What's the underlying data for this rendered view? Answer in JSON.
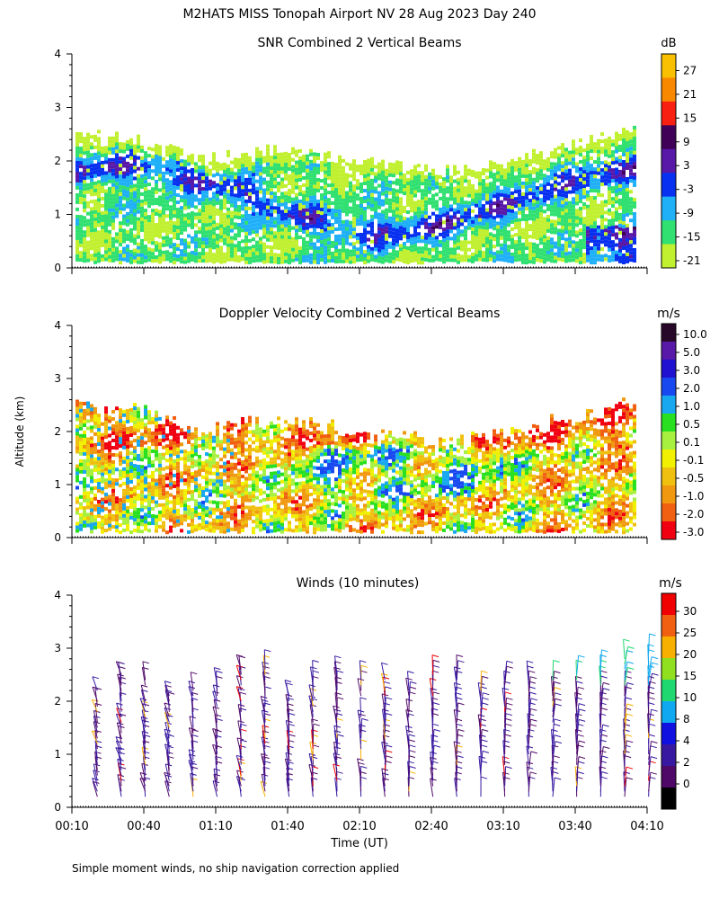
{
  "title": "M2HATS MISS Tonopah Airport NV  28 Aug 2023 Day 240",
  "ylabel": "Altitude (km)",
  "xlabel": "Time (UT)",
  "footnote": "Simple moment winds, no ship navigation correction applied",
  "chart_data": [
    {
      "type": "heatmap",
      "title": "SNR Combined 2 Vertical Beams",
      "xlim": [
        0.1667,
        4.1667
      ],
      "ylim": [
        0,
        4
      ],
      "x_ticks": [],
      "y_ticks": [
        "0",
        "1",
        "2",
        "3",
        "4"
      ],
      "colorbar": {
        "unit": "dB",
        "labels": [
          "27",
          "21",
          "15",
          "9",
          "3",
          "-3",
          "-9",
          "-15",
          "-21"
        ],
        "colors": [
          "#f8c000",
          "#f88800",
          "#f82010",
          "#400058",
          "#5818a8",
          "#0830f0",
          "#20b0f8",
          "#30e070",
          "#c0f030"
        ]
      },
      "description_values": {
        "echo_top_km": [
          2.5,
          2.4,
          2.0,
          2.2,
          2.1,
          1.9,
          1.8,
          2.0,
          2.3,
          2.6
        ],
        "dominant_snr_db": [
          -15,
          -9,
          -3
        ]
      }
    },
    {
      "type": "heatmap",
      "title": "Doppler Velocity Combined 2 Vertical Beams",
      "xlim": [
        0.1667,
        4.1667
      ],
      "ylim": [
        0,
        4
      ],
      "y_ticks": [
        "0",
        "1",
        "2",
        "3",
        "4"
      ],
      "colorbar": {
        "unit": "m/s",
        "labels": [
          "10.0",
          "5.0",
          "3.0",
          "2.0",
          "1.0",
          "0.5",
          "0.1",
          "-0.1",
          "-0.5",
          "-1.0",
          "-2.0",
          "-3.0"
        ],
        "colors": [
          "#280828",
          "#5818a8",
          "#2010d0",
          "#1848f0",
          "#18a8f0",
          "#28e020",
          "#a8f040",
          "#f0f000",
          "#f0c010",
          "#f09810",
          "#f06010",
          "#f00010"
        ]
      }
    },
    {
      "type": "scatter",
      "title": "Winds (10 minutes)",
      "xlim": [
        0.1667,
        4.1667
      ],
      "ylim": [
        0,
        4
      ],
      "x_ticks": [
        "00:10",
        "00:40",
        "01:10",
        "01:40",
        "02:10",
        "02:40",
        "03:10",
        "03:40",
        "04:10"
      ],
      "y_ticks": [
        "0",
        "1",
        "2",
        "3",
        "4"
      ],
      "colorbar": {
        "unit": "m/s",
        "labels": [
          "30",
          "25",
          "20",
          "15",
          "10",
          "8",
          "4",
          "2",
          "0"
        ],
        "colors": [
          "#f00000",
          "#f06010",
          "#f8b000",
          "#90e020",
          "#20d870",
          "#10a8f0",
          "#1010e0",
          "#3818a0",
          "#500868",
          "#000000"
        ]
      },
      "profile_times_utc": [
        "00:15",
        "00:25",
        "00:35",
        "00:45",
        "00:55",
        "01:05",
        "01:15",
        "01:25",
        "01:35",
        "01:45",
        "01:55",
        "02:05",
        "02:15",
        "02:25",
        "02:35",
        "02:45",
        "02:55",
        "03:05",
        "03:15",
        "03:25",
        "03:35",
        "03:45",
        "03:55",
        "04:05"
      ]
    }
  ]
}
